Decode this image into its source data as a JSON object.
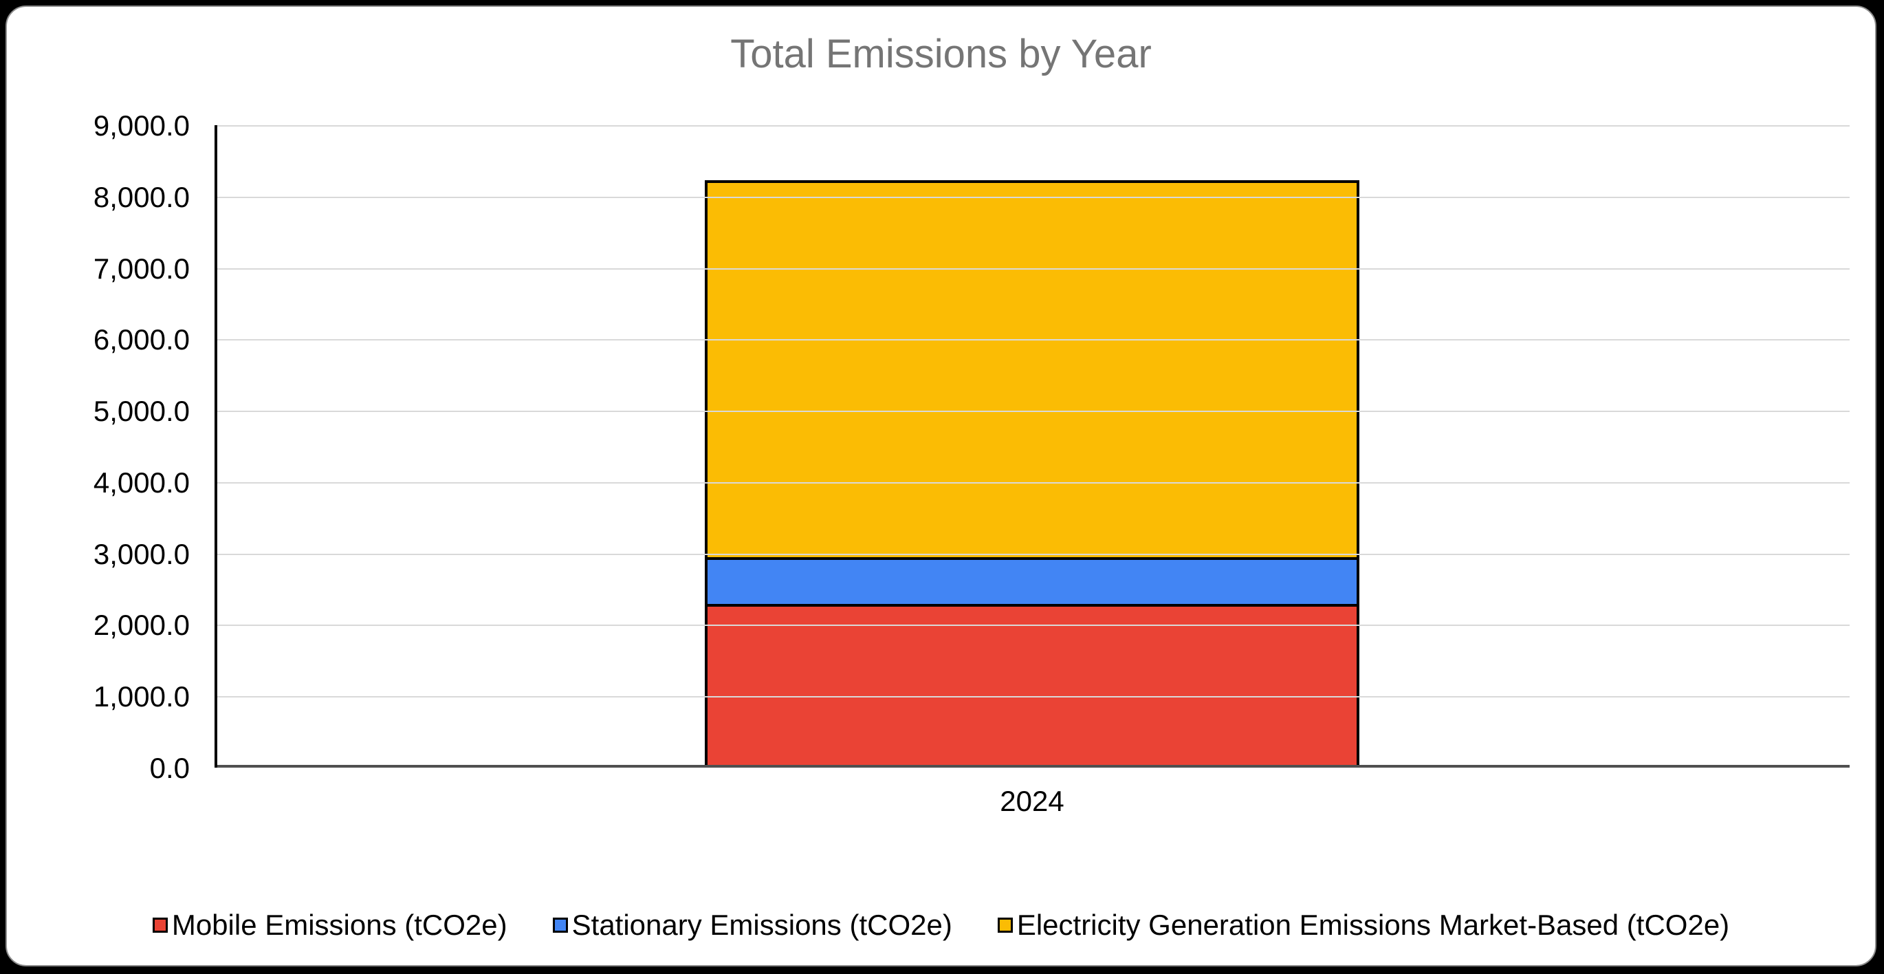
{
  "page": {
    "background_color": "#000000",
    "card_background_color": "#ffffff",
    "card_border_color": "#8d8d8d"
  },
  "chart_data": {
    "type": "bar",
    "stacked": true,
    "title": "Total Emissions by Year",
    "title_color": "#757575",
    "xlabel": "",
    "ylabel": "",
    "categories": [
      "2024"
    ],
    "series": [
      {
        "key": "mobile",
        "name": "Mobile Emissions (tCO2e)",
        "color": "#EA4335",
        "values": [
          2250
        ]
      },
      {
        "key": "stationary",
        "name": "Stationary Emissions (tCO2e)",
        "color": "#4285F4",
        "values": [
          660
        ]
      },
      {
        "key": "electricity",
        "name": "Electricity Generation Emissions Market-Based (tCO2e)",
        "color": "#FBBC04",
        "values": [
          5320
        ]
      }
    ],
    "stack_totals": [
      8230
    ],
    "ylim": [
      0,
      9000
    ],
    "ytick_interval": 1000,
    "ytick_labels": [
      "0.0",
      "1,000.0",
      "2,000.0",
      "3,000.0",
      "4,000.0",
      "5,000.0",
      "6,000.0",
      "7,000.0",
      "8,000.0",
      "9,000.0"
    ],
    "grid": true,
    "gridline_color": "#d9d9d9",
    "baseline_color": "#505050",
    "y_axis_line_color": "#000000",
    "bar_border_color": "#000000",
    "legend_position": "bottom"
  }
}
